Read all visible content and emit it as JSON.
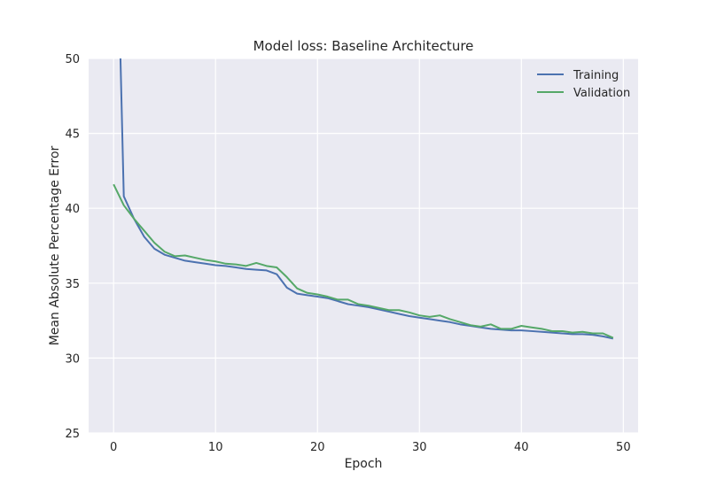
{
  "chart_data": {
    "type": "line",
    "title": "Model loss: Baseline Architecture",
    "xlabel": "Epoch",
    "ylabel": "Mean Absolute Percentage Error",
    "xlim": [
      -2.45,
      51.45
    ],
    "ylim": [
      25,
      50
    ],
    "xticks": [
      0,
      10,
      20,
      30,
      40,
      50
    ],
    "yticks": [
      25,
      30,
      35,
      40,
      45,
      50
    ],
    "grid": true,
    "legend_position": "upper-right",
    "x": [
      0,
      1,
      2,
      3,
      4,
      5,
      6,
      7,
      8,
      9,
      10,
      11,
      12,
      13,
      14,
      15,
      16,
      17,
      18,
      19,
      20,
      21,
      22,
      23,
      24,
      25,
      26,
      27,
      28,
      29,
      30,
      31,
      32,
      33,
      34,
      35,
      36,
      37,
      38,
      39,
      40,
      41,
      42,
      43,
      44,
      45,
      46,
      47,
      48,
      49
    ],
    "series": [
      {
        "name": "Training",
        "color": "#4c72b0",
        "values": [
          69.0,
          40.8,
          39.3,
          38.1,
          37.3,
          36.9,
          36.7,
          36.5,
          36.4,
          36.3,
          36.2,
          36.15,
          36.05,
          35.95,
          35.9,
          35.85,
          35.6,
          34.7,
          34.3,
          34.2,
          34.1,
          34.0,
          33.8,
          33.6,
          33.5,
          33.4,
          33.25,
          33.1,
          32.95,
          32.8,
          32.7,
          32.6,
          32.5,
          32.4,
          32.25,
          32.15,
          32.05,
          31.95,
          31.9,
          31.85,
          31.85,
          31.8,
          31.75,
          31.7,
          31.65,
          31.6,
          31.6,
          31.55,
          31.45,
          31.3
        ]
      },
      {
        "name": "Validation",
        "color": "#55a868",
        "values": [
          41.6,
          40.2,
          39.3,
          38.5,
          37.7,
          37.1,
          36.8,
          36.85,
          36.7,
          36.55,
          36.45,
          36.3,
          36.25,
          36.15,
          36.35,
          36.15,
          36.05,
          35.4,
          34.65,
          34.35,
          34.25,
          34.1,
          33.9,
          33.9,
          33.6,
          33.5,
          33.35,
          33.2,
          33.2,
          33.05,
          32.85,
          32.75,
          32.85,
          32.6,
          32.4,
          32.2,
          32.1,
          32.25,
          31.95,
          31.95,
          32.15,
          32.05,
          31.95,
          31.8,
          31.8,
          31.7,
          31.75,
          31.65,
          31.65,
          31.35
        ]
      }
    ]
  }
}
